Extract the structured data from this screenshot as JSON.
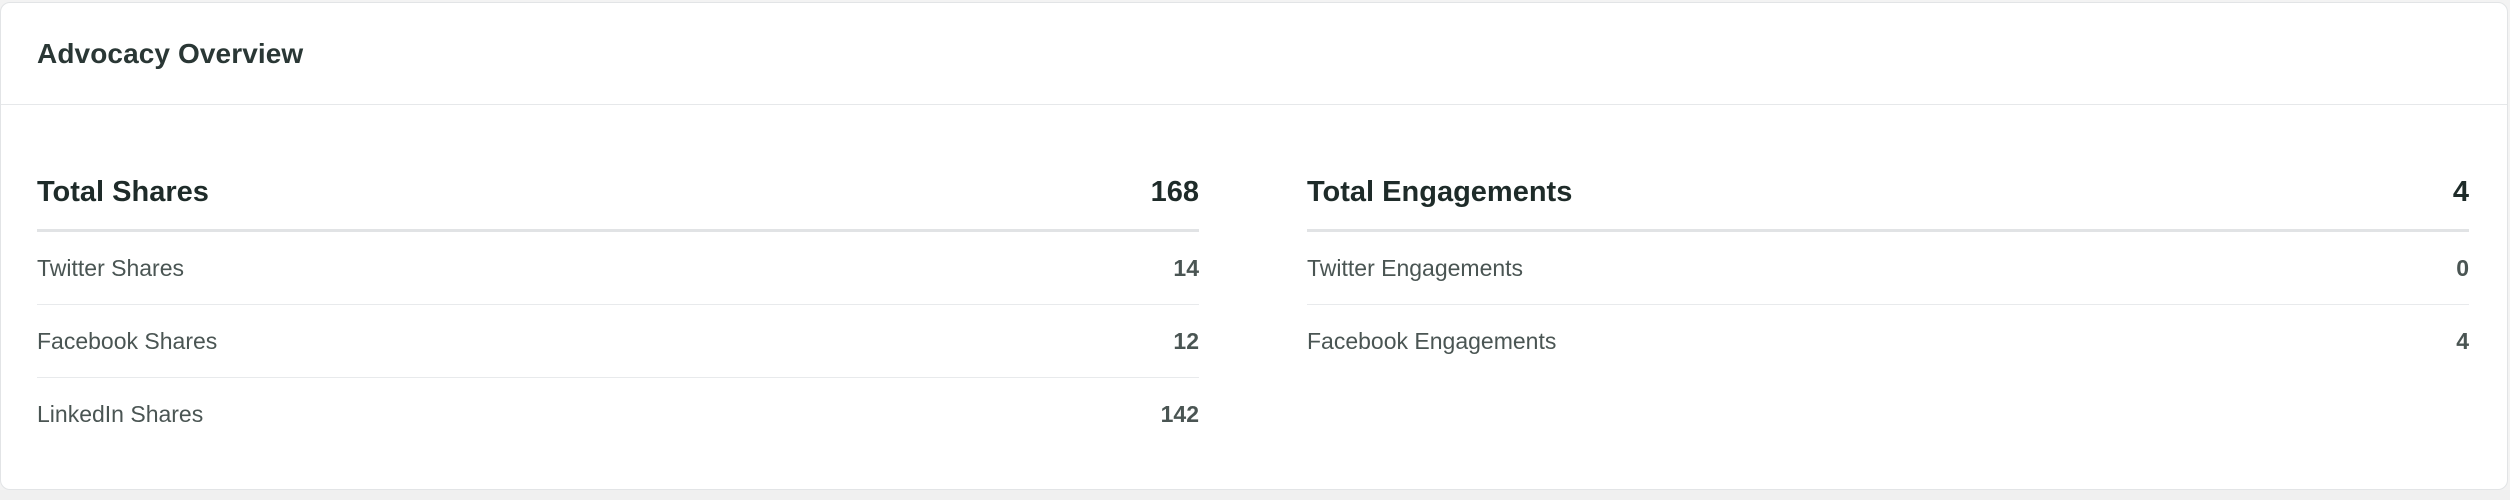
{
  "card": {
    "title": "Advocacy Overview"
  },
  "shares": {
    "total_label": "Total Shares",
    "total_value": "168",
    "items": [
      {
        "label": "Twitter Shares",
        "value": "14"
      },
      {
        "label": "Facebook Shares",
        "value": "12"
      },
      {
        "label": "LinkedIn Shares",
        "value": "142"
      }
    ]
  },
  "engagements": {
    "total_label": "Total Engagements",
    "total_value": "4",
    "items": [
      {
        "label": "Twitter Engagements",
        "value": "0"
      },
      {
        "label": "Facebook Engagements",
        "value": "4"
      }
    ]
  },
  "colors": {
    "card_background": "#ffffff",
    "page_background": "#f3f3f3",
    "heading_text": "#1e2b29",
    "row_text": "#4a5553",
    "divider": "#e1e3e5"
  }
}
